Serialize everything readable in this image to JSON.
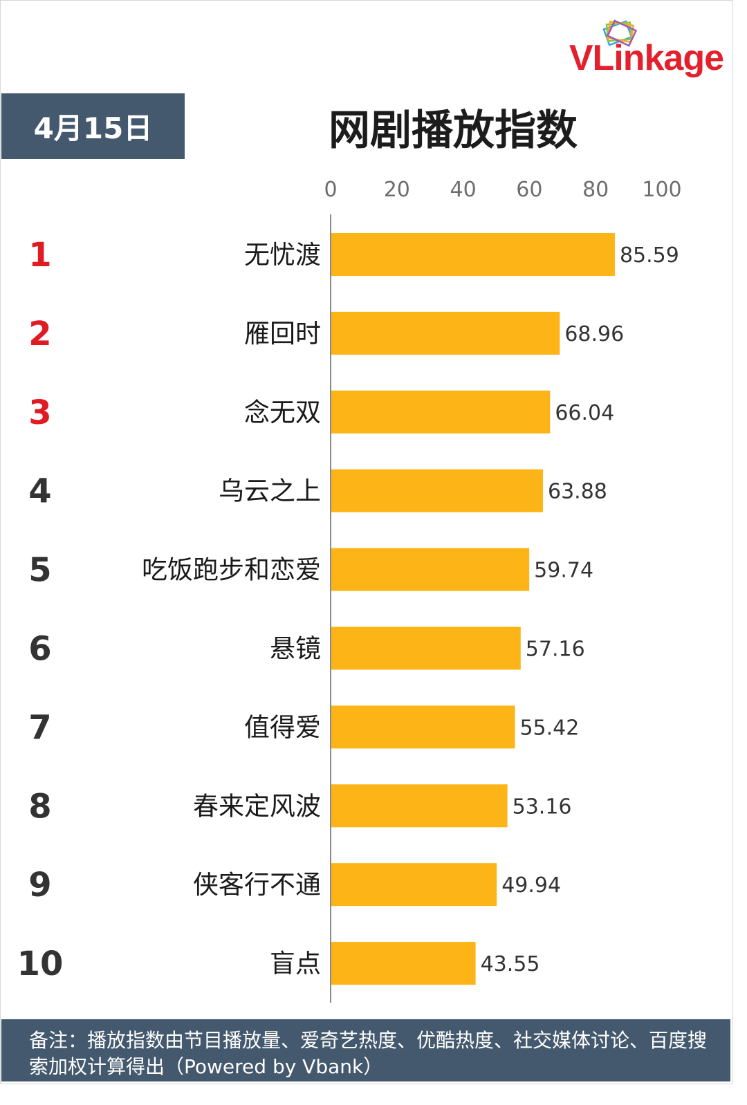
{
  "brand": {
    "logo_text_v": "V",
    "logo_text_l": "L",
    "logo_text_rest": "inkage"
  },
  "header": {
    "date": "4月15日",
    "title": "网剧播放指数"
  },
  "colors": {
    "bar": "#FDB416",
    "rank_top": "#E01B24",
    "rank_other": "#333333",
    "header_bg": "#44596E"
  },
  "chart_data": {
    "type": "bar",
    "orientation": "horizontal",
    "title": "网剧播放指数",
    "categories": [
      "无忧渡",
      "雁回时",
      "念无双",
      "乌云之上",
      "吃饭跑步和恋爱",
      "悬镜",
      "值得爱",
      "春来定风波",
      "侠客行不通",
      "盲点"
    ],
    "ranks": [
      "1",
      "2",
      "3",
      "4",
      "5",
      "6",
      "7",
      "8",
      "9",
      "10"
    ],
    "values": [
      85.59,
      68.96,
      66.04,
      63.88,
      59.74,
      57.16,
      55.42,
      53.16,
      49.94,
      43.55
    ],
    "value_labels": [
      "85.59",
      "68.96",
      "66.04",
      "63.88",
      "59.74",
      "57.16",
      "55.42",
      "53.16",
      "49.94",
      "43.55"
    ],
    "xlim": [
      0,
      100
    ],
    "xticks": [
      0,
      20,
      40,
      60,
      80,
      100
    ],
    "grid": false,
    "legend": "none"
  },
  "footer": {
    "note": "备注：播放指数由节目播放量、爱奇艺热度、优酷热度、社交媒体讨论、百度搜索加权计算得出（Powered by Vbank）"
  }
}
